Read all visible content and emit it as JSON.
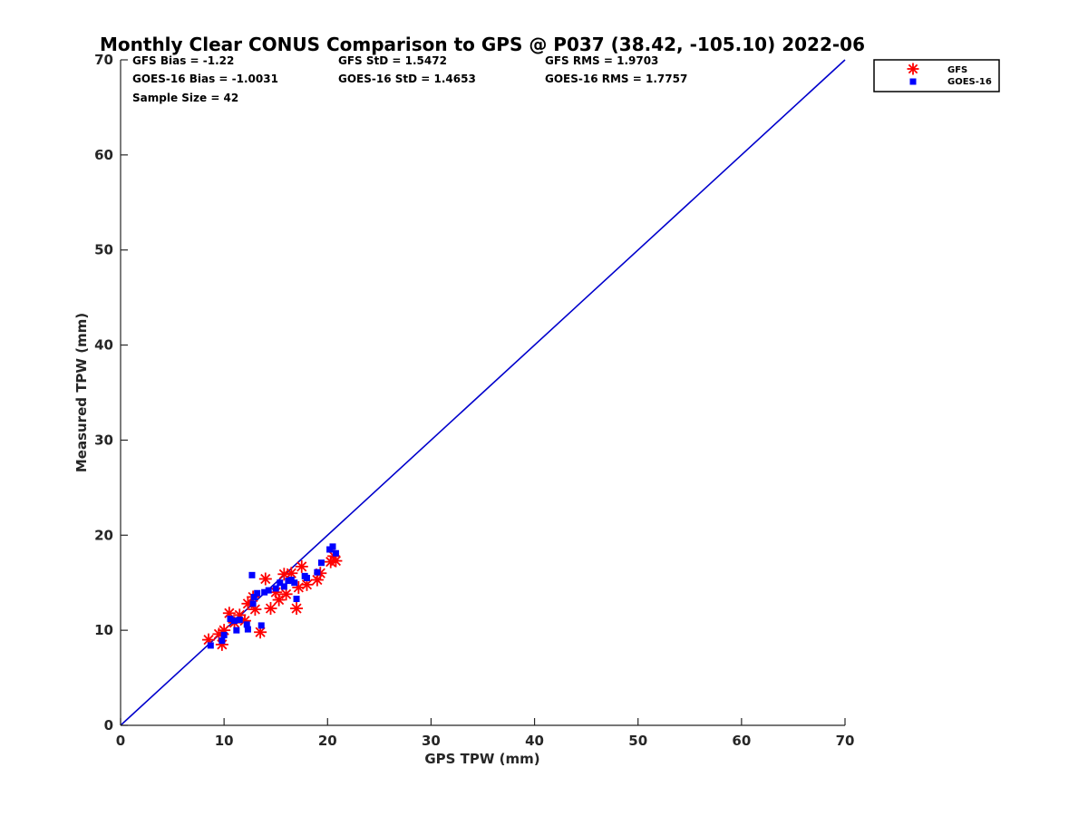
{
  "chart_data": {
    "type": "scatter",
    "title": "Monthly Clear CONUS Comparison to GPS @ P037 (38.42, -105.10) 2022-06",
    "xlabel": "GPS TPW (mm)",
    "ylabel": "Measured TPW (mm)",
    "xlim": [
      0,
      70
    ],
    "ylim": [
      0,
      70
    ],
    "xticks": [
      "0",
      "10",
      "20",
      "30",
      "40",
      "50",
      "60",
      "70"
    ],
    "yticks": [
      "0",
      "10",
      "20",
      "30",
      "40",
      "50",
      "60",
      "70"
    ],
    "grid": false,
    "legend_position": "outside-top-right",
    "stats": {
      "gfs_bias": "GFS Bias = -1.22",
      "goes_bias": "GOES-16 Bias = -1.0031",
      "sample_size": "Sample Size = 42",
      "gfs_std": "GFS StD = 1.5472",
      "goes_std": "GOES-16 StD = 1.4653",
      "gfs_rms": "GFS RMS = 1.9703",
      "goes_rms": "GOES-16 RMS = 1.7757"
    },
    "reference_line": {
      "from": [
        0,
        0
      ],
      "to": [
        70,
        70
      ],
      "color": "#0000cc"
    },
    "series": [
      {
        "name": "GFS",
        "marker": "asterisk",
        "color": "#ff0000",
        "points": [
          [
            8.5,
            9.0
          ],
          [
            9.5,
            9.6
          ],
          [
            9.8,
            8.5
          ],
          [
            10.0,
            10.0
          ],
          [
            10.5,
            11.8
          ],
          [
            11.0,
            10.8
          ],
          [
            11.5,
            11.6
          ],
          [
            12.0,
            11.0
          ],
          [
            12.3,
            12.8
          ],
          [
            12.8,
            13.5
          ],
          [
            13.0,
            12.2
          ],
          [
            13.5,
            9.8
          ],
          [
            14.0,
            15.4
          ],
          [
            14.5,
            12.3
          ],
          [
            15.0,
            14.0
          ],
          [
            15.3,
            13.2
          ],
          [
            15.8,
            15.9
          ],
          [
            16.0,
            13.8
          ],
          [
            16.5,
            16.0
          ],
          [
            17.0,
            12.3
          ],
          [
            17.2,
            14.5
          ],
          [
            17.5,
            16.7
          ],
          [
            18.0,
            14.8
          ],
          [
            19.0,
            15.3
          ],
          [
            19.3,
            16.0
          ],
          [
            20.3,
            17.2
          ],
          [
            20.6,
            17.8
          ],
          [
            20.8,
            17.3
          ]
        ]
      },
      {
        "name": "GOES-16",
        "marker": "square",
        "color": "#0000ff",
        "points": [
          [
            8.7,
            8.4
          ],
          [
            9.8,
            8.9
          ],
          [
            10.0,
            9.5
          ],
          [
            10.6,
            11.2
          ],
          [
            11.0,
            11.0
          ],
          [
            11.5,
            11.1
          ],
          [
            11.2,
            10.0
          ],
          [
            12.2,
            10.6
          ],
          [
            12.3,
            10.1
          ],
          [
            12.8,
            12.8
          ],
          [
            12.9,
            13.5
          ],
          [
            12.7,
            15.8
          ],
          [
            13.2,
            13.9
          ],
          [
            13.6,
            10.5
          ],
          [
            13.9,
            14.0
          ],
          [
            14.3,
            14.2
          ],
          [
            15.0,
            14.4
          ],
          [
            15.4,
            15.0
          ],
          [
            15.8,
            14.6
          ],
          [
            16.2,
            15.2
          ],
          [
            16.5,
            15.3
          ],
          [
            16.8,
            15.0
          ],
          [
            17.0,
            13.3
          ],
          [
            17.8,
            15.7
          ],
          [
            18.0,
            15.5
          ],
          [
            19.0,
            16.1
          ],
          [
            19.4,
            17.1
          ],
          [
            20.2,
            18.5
          ],
          [
            20.5,
            18.8
          ],
          [
            20.8,
            18.1
          ]
        ]
      }
    ]
  }
}
